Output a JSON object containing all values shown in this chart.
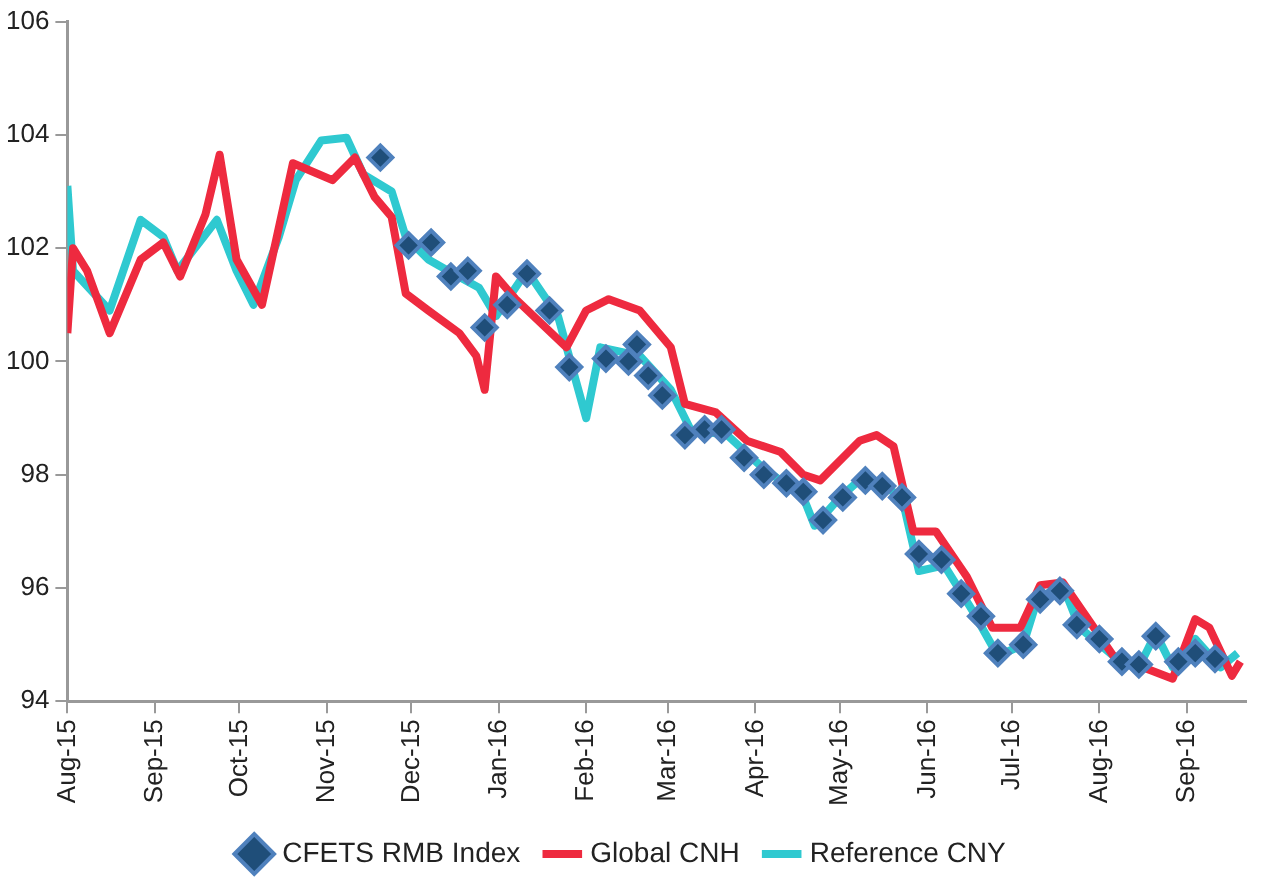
{
  "chart_data": {
    "type": "line",
    "xlim": [
      "2015-08-01",
      "2016-09-22"
    ],
    "xticks": [
      {
        "value": "2015-08-01",
        "label": "Aug-15"
      },
      {
        "value": "2015-09-01",
        "label": "Sep-15"
      },
      {
        "value": "2015-10-01",
        "label": "Oct-15"
      },
      {
        "value": "2015-11-01",
        "label": "Nov-15"
      },
      {
        "value": "2015-12-01",
        "label": "Dec-15"
      },
      {
        "value": "2016-01-01",
        "label": "Jan-16"
      },
      {
        "value": "2016-02-01",
        "label": "Feb-16"
      },
      {
        "value": "2016-03-01",
        "label": "Mar-16"
      },
      {
        "value": "2016-04-01",
        "label": "Apr-16"
      },
      {
        "value": "2016-05-01",
        "label": "May-16"
      },
      {
        "value": "2016-06-01",
        "label": "Jun-16"
      },
      {
        "value": "2016-07-01",
        "label": "Jul-16"
      },
      {
        "value": "2016-08-01",
        "label": "Aug-16"
      },
      {
        "value": "2016-09-01",
        "label": "Sep-16"
      }
    ],
    "ylim": [
      94,
      106
    ],
    "yticks": [
      94,
      96,
      98,
      100,
      102,
      104,
      106
    ],
    "grid": false,
    "legend": "bottom",
    "series": [
      {
        "name": "CFETS RMB Index",
        "type": "scatter",
        "marker": "diamond",
        "color": "#1f4e79",
        "x": [
          "2015-11-20",
          "2015-11-30",
          "2015-12-08",
          "2015-12-15",
          "2015-12-21",
          "2015-12-27",
          "2016-01-04",
          "2016-01-11",
          "2016-01-19",
          "2016-01-26",
          "2016-02-08",
          "2016-02-16",
          "2016-02-19",
          "2016-02-23",
          "2016-02-28",
          "2016-03-07",
          "2016-03-14",
          "2016-03-20",
          "2016-03-28",
          "2016-04-04",
          "2016-04-12",
          "2016-04-18",
          "2016-04-25",
          "2016-05-02",
          "2016-05-10",
          "2016-05-16",
          "2016-05-23",
          "2016-05-29",
          "2016-06-06",
          "2016-06-13",
          "2016-06-20",
          "2016-06-26",
          "2016-07-05",
          "2016-07-11",
          "2016-07-18",
          "2016-07-24",
          "2016-08-01",
          "2016-08-09",
          "2016-08-15",
          "2016-08-21",
          "2016-08-29",
          "2016-09-04",
          "2016-09-11"
        ],
        "values": [
          103.6,
          102.05,
          102.1,
          101.5,
          101.6,
          100.6,
          101.0,
          101.55,
          100.9,
          99.9,
          100.05,
          100.0,
          100.3,
          99.75,
          99.4,
          98.7,
          98.8,
          98.8,
          98.3,
          98.0,
          97.85,
          97.7,
          97.2,
          97.6,
          97.9,
          97.8,
          97.6,
          96.6,
          96.5,
          95.9,
          95.5,
          94.85,
          95.0,
          95.8,
          95.95,
          95.35,
          95.1,
          94.7,
          94.65,
          95.15,
          94.7,
          94.85,
          94.75
        ]
      },
      {
        "name": "Global CNH",
        "type": "line",
        "color": "#ee2a3f",
        "x": [
          "2015-08-01",
          "2015-08-03",
          "2015-08-08",
          "2015-08-16",
          "2015-08-27",
          "2015-09-04",
          "2015-09-10",
          "2015-09-19",
          "2015-09-24",
          "2015-09-30",
          "2015-10-09",
          "2015-10-20",
          "2015-11-03",
          "2015-11-11",
          "2015-11-18",
          "2015-11-24",
          "2015-11-29",
          "2015-12-07",
          "2015-12-18",
          "2015-12-24",
          "2015-12-27",
          "2015-12-31",
          "2016-01-07",
          "2016-01-25",
          "2016-02-01",
          "2016-02-09",
          "2016-02-20",
          "2016-03-02",
          "2016-03-07",
          "2016-03-18",
          "2016-03-29",
          "2016-04-10",
          "2016-04-18",
          "2016-04-24",
          "2016-05-08",
          "2016-05-14",
          "2016-05-20",
          "2016-05-27",
          "2016-06-04",
          "2016-06-15",
          "2016-06-24",
          "2016-07-04",
          "2016-07-11",
          "2016-07-19",
          "2016-08-06",
          "2016-08-27",
          "2016-09-04",
          "2016-09-09",
          "2016-09-17",
          "2016-09-20"
        ],
        "values": [
          100.5,
          102.0,
          101.6,
          100.5,
          101.8,
          102.1,
          101.5,
          102.6,
          103.65,
          101.8,
          101.0,
          103.5,
          103.2,
          103.6,
          102.9,
          102.55,
          101.2,
          100.9,
          100.5,
          100.1,
          99.5,
          101.5,
          101.1,
          100.25,
          100.9,
          101.1,
          100.9,
          100.25,
          99.25,
          99.1,
          98.6,
          98.4,
          98.0,
          97.9,
          98.6,
          98.7,
          98.5,
          97.0,
          97.0,
          96.2,
          95.3,
          95.3,
          96.05,
          96.1,
          94.8,
          94.4,
          95.45,
          95.3,
          94.45,
          94.7
        ]
      },
      {
        "name": "Reference CNY",
        "type": "line",
        "color": "#2fc9d0",
        "x": [
          "2015-08-01",
          "2015-08-03",
          "2015-08-16",
          "2015-08-27",
          "2015-09-04",
          "2015-09-09",
          "2015-09-23",
          "2015-09-30",
          "2015-10-06",
          "2015-10-15",
          "2015-10-21",
          "2015-10-30",
          "2015-11-08",
          "2015-11-14",
          "2015-11-24",
          "2015-11-29",
          "2015-12-07",
          "2015-12-14",
          "2015-12-25",
          "2015-12-31",
          "2016-01-11",
          "2016-01-22",
          "2016-02-01",
          "2016-02-06",
          "2016-02-20",
          "2016-03-02",
          "2016-03-09",
          "2016-03-22",
          "2016-04-03",
          "2016-04-18",
          "2016-04-22",
          "2016-05-01",
          "2016-05-10",
          "2016-05-23",
          "2016-05-29",
          "2016-06-07",
          "2016-06-17",
          "2016-06-26",
          "2016-07-05",
          "2016-07-10",
          "2016-07-19",
          "2016-07-25",
          "2016-08-06",
          "2016-08-15",
          "2016-08-21",
          "2016-08-27",
          "2016-09-04",
          "2016-09-13",
          "2016-09-19"
        ],
        "values": [
          103.1,
          101.6,
          100.9,
          102.5,
          102.2,
          101.6,
          102.5,
          101.6,
          101.0,
          102.2,
          103.2,
          103.9,
          103.95,
          103.3,
          103.0,
          102.2,
          101.8,
          101.6,
          101.3,
          100.8,
          101.6,
          100.8,
          99.0,
          100.25,
          100.1,
          99.5,
          98.8,
          98.7,
          98.15,
          97.6,
          97.1,
          97.6,
          98.0,
          97.6,
          96.3,
          96.4,
          95.6,
          94.8,
          95.0,
          95.8,
          96.05,
          95.3,
          94.8,
          94.6,
          95.2,
          94.6,
          95.1,
          94.6,
          94.85
        ]
      }
    ]
  }
}
